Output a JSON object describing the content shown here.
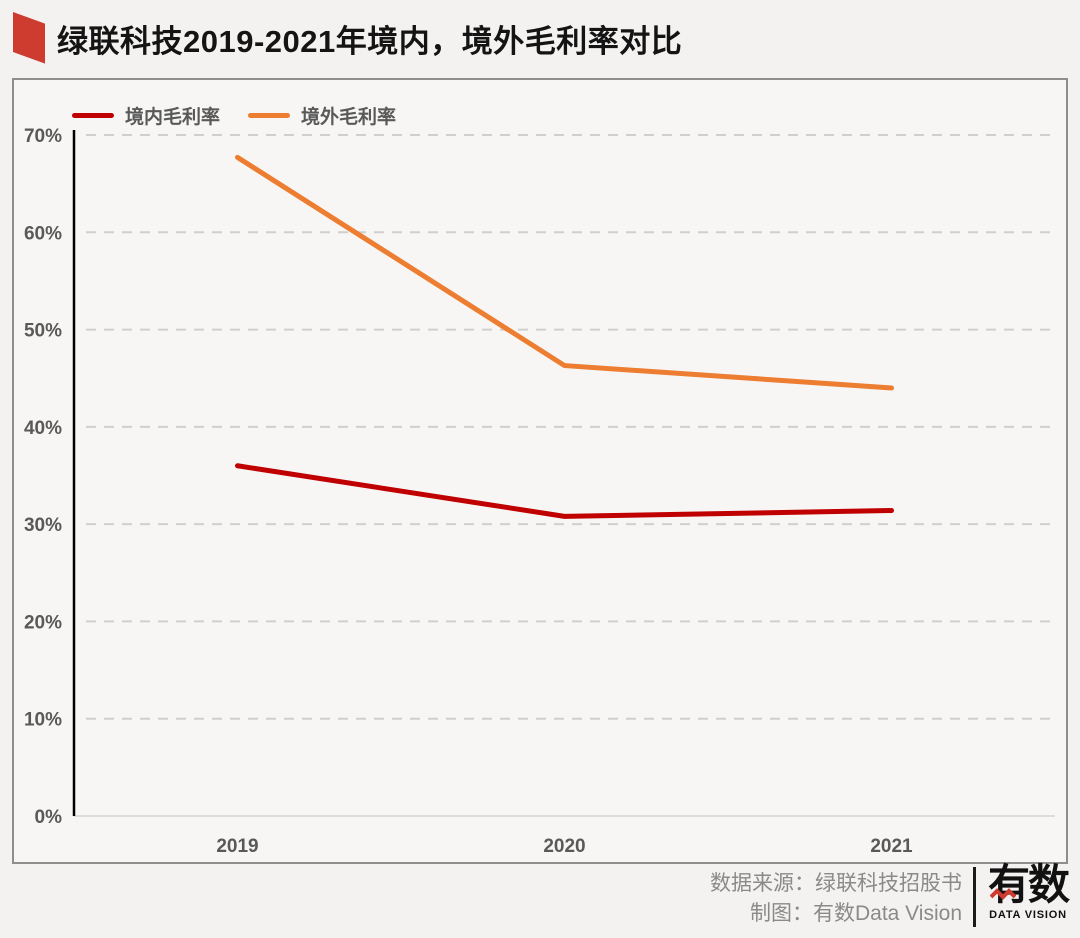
{
  "page": {
    "background": "#f3f2f0"
  },
  "title": {
    "text": "绿联科技2019-2021年境内，境外毛利率对比",
    "marker_color": "#ce3b2f"
  },
  "legend": {
    "items": [
      {
        "label": "境内毛利率",
        "color": "#c00000"
      },
      {
        "label": "境外毛利率",
        "color": "#ed7d31"
      }
    ]
  },
  "chart_data": {
    "type": "line",
    "title": "绿联科技2019-2021年境内，境外毛利率对比",
    "categories": [
      "2019",
      "2020",
      "2021"
    ],
    "series": [
      {
        "name": "境内毛利率",
        "color": "#c00000",
        "values": [
          36.0,
          30.8,
          31.4
        ]
      },
      {
        "name": "境外毛利率",
        "color": "#ed7d31",
        "values": [
          67.7,
          46.3,
          44.0
        ]
      }
    ],
    "unit": "%",
    "ylim": [
      0,
      70
    ],
    "ytick_step": 10,
    "ytick_labels": [
      "0%",
      "10%",
      "20%",
      "30%",
      "40%",
      "50%",
      "60%",
      "70%"
    ],
    "grid": "horizontal-dashed",
    "gridline_color": "#cfcfcd",
    "axis_color": "#000000",
    "tick_label_color": "#595959",
    "legend_position": "top-left"
  },
  "footer": {
    "source": "数据来源：绿联科技招股书",
    "credit": "制图：有数Data Vision",
    "logo": {
      "text": "有数",
      "subtext": "DATA VISION"
    }
  }
}
